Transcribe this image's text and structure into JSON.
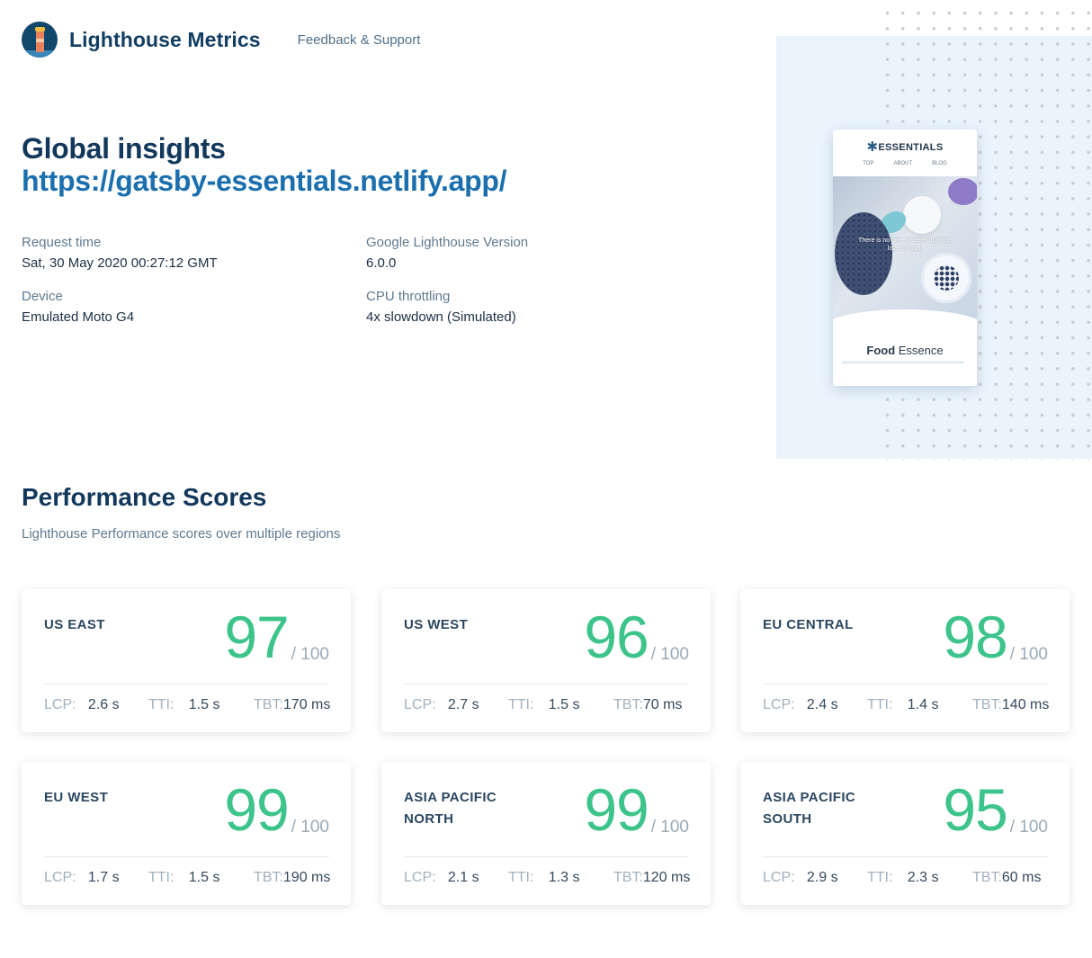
{
  "header": {
    "brand": "Lighthouse Metrics",
    "nav_link": "Feedback & Support"
  },
  "hero": {
    "title": "Global insights",
    "url": "https://gatsby-essentials.netlify.app/"
  },
  "meta": {
    "request_time_label": "Request time",
    "request_time_value": "Sat, 30 May 2020 00:27:12 GMT",
    "lighthouse_version_label": "Google Lighthouse Version",
    "lighthouse_version_value": "6.0.0",
    "device_label": "Device",
    "device_value": "Emulated Moto G4",
    "cpu_label": "CPU throttling",
    "cpu_value": "4x slowdown (Simulated)"
  },
  "preview": {
    "site_name": "ESSENTIALS",
    "nav": [
      "TOP",
      "ABOUT",
      "BLOG"
    ],
    "tagline": "There is no love sincerer than the love of food.",
    "heading_bold": "Food",
    "heading_rest": " Essence"
  },
  "performance": {
    "title": "Performance Scores",
    "subtitle": "Lighthouse Performance scores over multiple regions",
    "max_label": "/ 100",
    "lcp_label": "LCP:",
    "tti_label": "TTI:",
    "tbt_label": "TBT:",
    "colors": {
      "score": "#3cc48a"
    },
    "regions": [
      {
        "name": "US EAST",
        "score": "97",
        "lcp": "2.6 s",
        "tti": "1.5 s",
        "tbt": "170 ms"
      },
      {
        "name": "US WEST",
        "score": "96",
        "lcp": "2.7 s",
        "tti": "1.5 s",
        "tbt": "70 ms"
      },
      {
        "name": "EU CENTRAL",
        "score": "98",
        "lcp": "2.4 s",
        "tti": "1.4 s",
        "tbt": "140 ms"
      },
      {
        "name": "EU WEST",
        "score": "99",
        "lcp": "1.7 s",
        "tti": "1.5 s",
        "tbt": "190 ms"
      },
      {
        "name": "ASIA PACIFIC NORTH",
        "score": "99",
        "lcp": "2.1 s",
        "tti": "1.3 s",
        "tbt": "120 ms"
      },
      {
        "name": "ASIA PACIFIC SOUTH",
        "score": "95",
        "lcp": "2.9 s",
        "tti": "2.3 s",
        "tbt": "60 ms"
      }
    ]
  }
}
